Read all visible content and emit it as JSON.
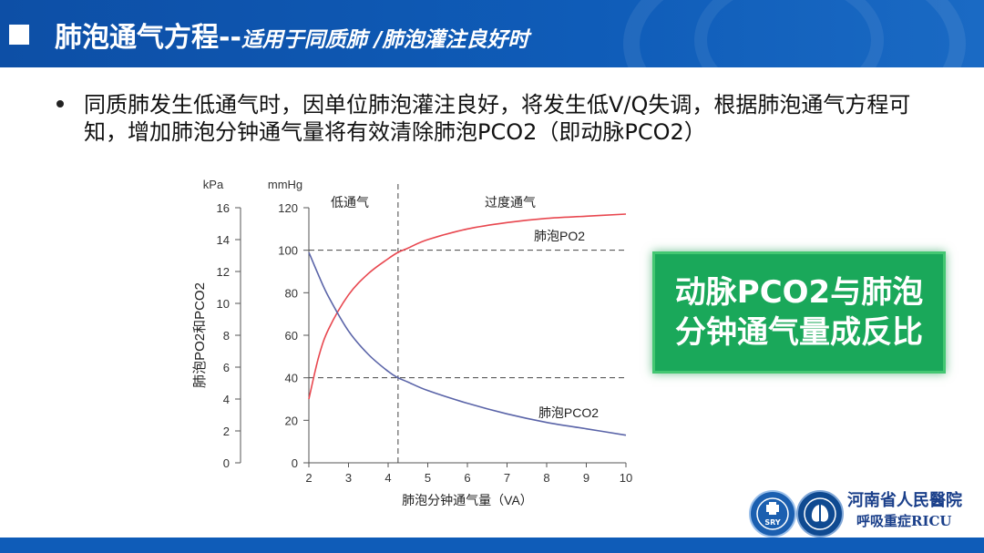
{
  "header": {
    "title_main": "肺泡通气方程--",
    "title_sub": "适用于同质肺 /肺泡灌注良好时"
  },
  "bullet": {
    "text": "同质肺发生低通气时，因单位肺泡灌注良好，将发生低V/Q失调，根据肺泡通气方程可知，增加肺泡分钟通气量将有效清除肺泡PCO2（即动脉PCO2）"
  },
  "callout": {
    "line1": "动脉PCO2与肺泡",
    "line2": "分钟通气量成反比",
    "color": "#1aa85a"
  },
  "logos": {
    "logo1_text": "SRY",
    "hospital_name": "河南省人民醫院",
    "unit_name": "呼吸重症RICU"
  },
  "chart_data": {
    "type": "line",
    "xlabel": "肺泡分钟通气量（VA）",
    "ylabel": "肺泡PO2和PCO2",
    "y_left_unit": "kPa",
    "y_right_unit": "mmHg",
    "x_ticks": [
      2,
      3,
      4,
      5,
      6,
      7,
      8,
      9,
      10
    ],
    "y_left_ticks": [
      0,
      2,
      4,
      6,
      8,
      10,
      12,
      14,
      16
    ],
    "y_right_ticks": [
      0,
      20,
      40,
      60,
      80,
      100,
      120
    ],
    "xlim": [
      2,
      10
    ],
    "ylim_mmHg": [
      0,
      120
    ],
    "regions": [
      {
        "label": "低通气"
      },
      {
        "label": "过度通气"
      }
    ],
    "divider_x": 4.25,
    "reference_lines_mmHg": [
      100,
      40
    ],
    "series": [
      {
        "name": "肺泡PO2",
        "color": "#e8474f",
        "x": [
          2,
          2.25,
          2.5,
          3,
          3.5,
          4,
          4.25,
          4.5,
          5,
          6,
          7,
          8,
          9,
          10
        ],
        "y": [
          30,
          50,
          63,
          79,
          89,
          96,
          99,
          101,
          105,
          110,
          113,
          115,
          116,
          117
        ]
      },
      {
        "name": "肺泡PCO2",
        "color": "#5a64a8",
        "x": [
          2,
          2.25,
          2.5,
          3,
          3.5,
          4,
          4.25,
          4.5,
          5,
          6,
          7,
          8,
          9,
          10
        ],
        "y": [
          99,
          88,
          78,
          62,
          51,
          43,
          40,
          38,
          34,
          28,
          23,
          19,
          16,
          13
        ]
      }
    ]
  }
}
